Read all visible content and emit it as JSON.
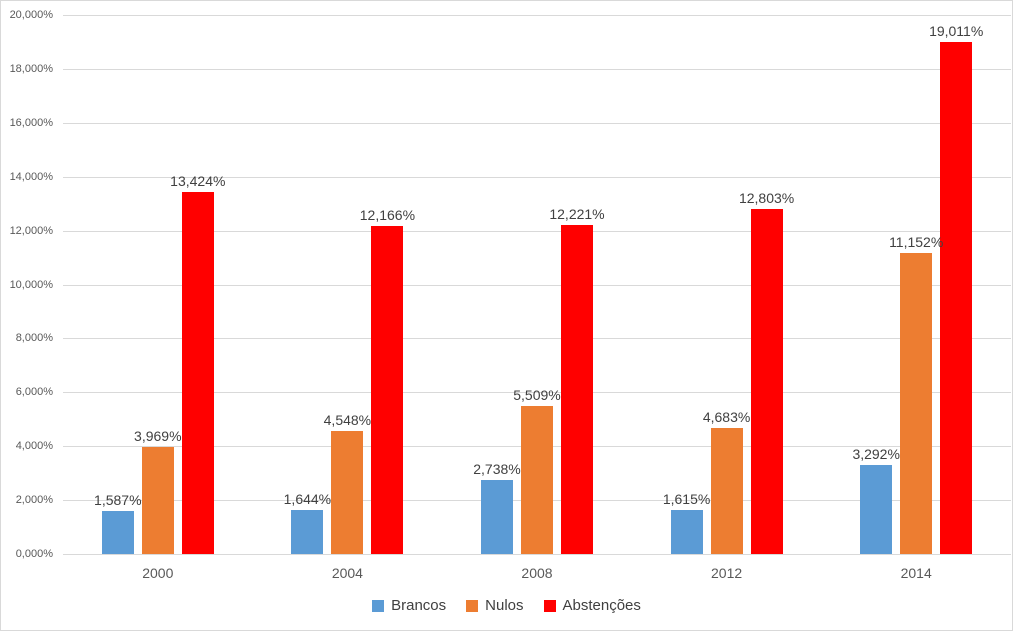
{
  "chart_data": {
    "type": "bar",
    "title": "",
    "categories": [
      "2000",
      "2004",
      "2008",
      "2012",
      "2014"
    ],
    "series": [
      {
        "name": "Brancos",
        "color": "#5B9BD5",
        "values": [
          1.587,
          1.644,
          2.738,
          1.615,
          3.292
        ],
        "labels": [
          "1,587%",
          "1,644%",
          "2,738%",
          "1,615%",
          "3,292%"
        ]
      },
      {
        "name": "Nulos",
        "color": "#ED7D31",
        "values": [
          3.969,
          4.548,
          5.509,
          4.683,
          11.152
        ],
        "labels": [
          "3,969%",
          "4,548%",
          "5,509%",
          "4,683%",
          "11,152%"
        ]
      },
      {
        "name": "Abstenções",
        "color": "#FF0000",
        "values": [
          13.424,
          12.166,
          12.221,
          12.803,
          19.011
        ],
        "labels": [
          "13,424%",
          "12,166%",
          "12,221%",
          "12,803%",
          "19,011%"
        ]
      }
    ],
    "y_axis": {
      "min": 0,
      "max": 20,
      "step": 2,
      "tick_labels": [
        "0,000%",
        "2,000%",
        "4,000%",
        "6,000%",
        "8,000%",
        "10,000%",
        "12,000%",
        "14,000%",
        "16,000%",
        "18,000%",
        "20,000%"
      ]
    },
    "x_axis": {
      "tick_labels": [
        "2000",
        "2004",
        "2008",
        "2012",
        "2014"
      ]
    },
    "legend_position": "bottom",
    "grid": true,
    "colors": {
      "background": "#FFFFFF",
      "frame_border": "#D9D9D9",
      "gridline": "#D9D9D9",
      "axis_text": "#595959",
      "data_label_text": "#404040",
      "legend_text": "#404040"
    }
  }
}
